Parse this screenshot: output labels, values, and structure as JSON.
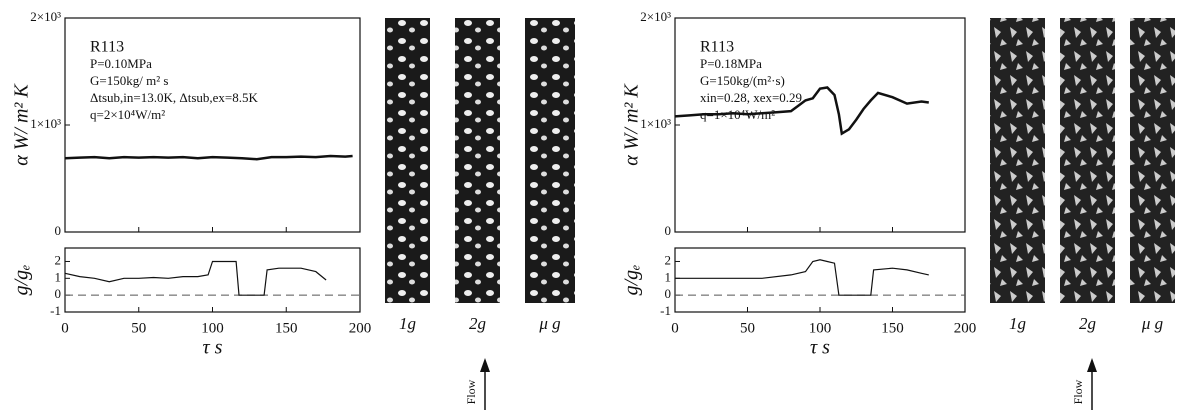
{
  "chart_data": [
    {
      "type": "line",
      "y_label": "α   W/ m²  K",
      "xlim": [
        0,
        200
      ],
      "ylim": [
        0,
        2000
      ],
      "xticks": [
        0,
        50,
        100,
        150,
        200
      ],
      "x_tick_labels": false,
      "yticks": [
        0,
        {
          "value": 1000,
          "label": "1×10³"
        },
        {
          "value": 2000,
          "label": "2×10³"
        }
      ],
      "annotation": [
        "R113",
        "P=0.10MPa",
        "G=150kg/ m² s",
        "Δtsub,in=13.0K, Δtsub,ex=8.5K",
        "q=2×10⁴W/m²"
      ],
      "color": "#111111",
      "x": [
        0,
        10,
        20,
        30,
        40,
        50,
        60,
        70,
        80,
        90,
        100,
        110,
        120,
        130,
        140,
        150,
        160,
        170,
        180,
        190,
        195
      ],
      "values": [
        690,
        695,
        700,
        690,
        700,
        695,
        700,
        695,
        700,
        690,
        700,
        695,
        690,
        680,
        700,
        700,
        705,
        700,
        710,
        705,
        710
      ]
    },
    {
      "type": "line",
      "y_label": "g/gₑ",
      "x_label": "τ   s",
      "xlim": [
        0,
        200
      ],
      "ylim": [
        -1,
        2.8
      ],
      "xticks": [
        0,
        50,
        100,
        150,
        200
      ],
      "x_tick_labels": true,
      "yticks": [
        -1,
        0,
        1,
        2
      ],
      "reference_line": 0,
      "color": "#111111",
      "x": [
        0,
        10,
        20,
        30,
        40,
        50,
        60,
        70,
        80,
        90,
        97,
        100,
        105,
        112,
        116,
        118,
        135,
        137,
        145,
        160,
        170,
        177
      ],
      "values": [
        1.3,
        1.1,
        1.0,
        0.8,
        1.0,
        1.0,
        1.05,
        1.0,
        1.1,
        1.1,
        1.2,
        2.0,
        2.0,
        2.0,
        2.0,
        0,
        0,
        1.5,
        1.6,
        1.6,
        1.4,
        0.9
      ]
    },
    {
      "type": "line",
      "y_label": "α   W/ m²  K",
      "xlim": [
        0,
        200
      ],
      "ylim": [
        0,
        2000
      ],
      "xticks": [
        0,
        50,
        100,
        150,
        200
      ],
      "x_tick_labels": false,
      "yticks": [
        0,
        {
          "value": 1000,
          "label": "1×10³"
        },
        {
          "value": 2000,
          "label": "2×10³"
        }
      ],
      "annotation": [
        "R113",
        "P=0.18MPa",
        "G=150kg/(m²·s)",
        "xin=0.28, xex=0.29",
        "q=1×10⁴W/m²"
      ],
      "color": "#111111",
      "x": [
        0,
        10,
        20,
        30,
        40,
        50,
        60,
        70,
        80,
        85,
        90,
        95,
        100,
        105,
        110,
        113,
        115,
        120,
        125,
        130,
        135,
        140,
        150,
        160,
        170,
        175
      ],
      "values": [
        1080,
        1090,
        1100,
        1100,
        1110,
        1100,
        1110,
        1120,
        1130,
        1180,
        1230,
        1250,
        1340,
        1350,
        1280,
        1100,
        920,
        960,
        1050,
        1150,
        1230,
        1300,
        1260,
        1200,
        1220,
        1210
      ]
    },
    {
      "type": "line",
      "y_label": "g/gₑ",
      "x_label": "τ   s",
      "xlim": [
        0,
        200
      ],
      "ylim": [
        -1,
        2.8
      ],
      "xticks": [
        0,
        50,
        100,
        150,
        200
      ],
      "x_tick_labels": true,
      "yticks": [
        -1,
        0,
        1,
        2
      ],
      "reference_line": 0,
      "color": "#111111",
      "x": [
        0,
        20,
        40,
        60,
        80,
        90,
        95,
        100,
        105,
        110,
        113,
        135,
        137,
        150,
        160,
        170,
        175
      ],
      "values": [
        1.0,
        1.0,
        1.0,
        1.0,
        1.2,
        1.4,
        2.0,
        2.1,
        2.0,
        1.9,
        0,
        0,
        1.5,
        1.6,
        1.5,
        1.3,
        1.2
      ]
    }
  ],
  "photos": [
    {
      "labels": [
        "1g",
        "2g",
        "μ g"
      ],
      "flow": "Flow"
    },
    {
      "labels": [
        "1g",
        "2g",
        "μ g"
      ],
      "flow": "Flow"
    }
  ]
}
